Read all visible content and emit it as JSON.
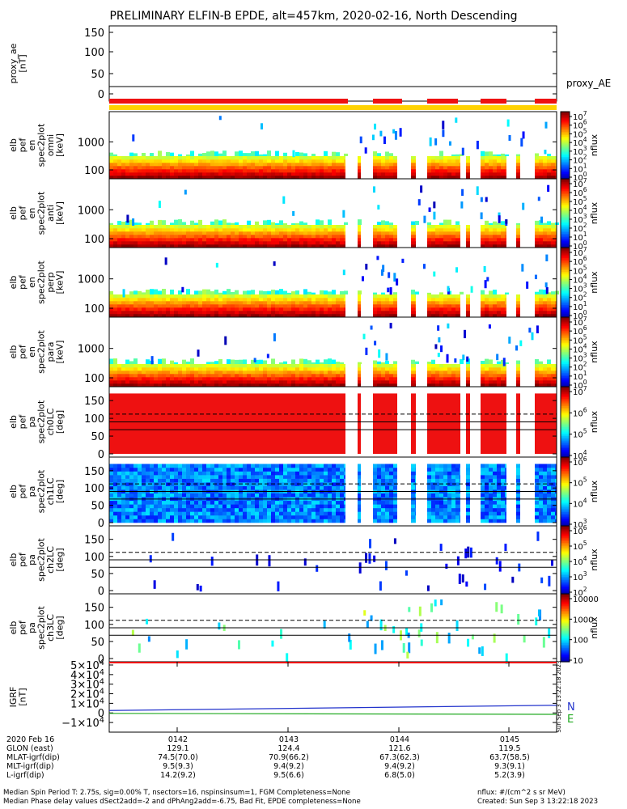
{
  "title": "PRELIMINARY ELFIN-B EPDE, alt=457km, 2020-02-16, North Descending",
  "chart_data": [
    {
      "type": "line",
      "panel": "proxy_ae",
      "ylabel": [
        "proxy_ae",
        "[nT]"
      ],
      "ytick_labels": [
        "150",
        "100",
        "50",
        "0"
      ],
      "ylim": [
        -15,
        160
      ],
      "legend": "proxy_AE",
      "series": [
        {
          "name": "proxy_AE",
          "values": [
            18,
            18,
            18,
            18
          ]
        }
      ]
    },
    {
      "type": "heatmap",
      "panel": "energy spectrogram 1",
      "ylabel": [
        "elb",
        "pef",
        "en",
        "spec2plot",
        "omni",
        "[keV]"
      ],
      "ytick_labels": [
        "1000",
        "100"
      ],
      "scale": "log",
      "colorbar_ticks": [
        "10^7",
        "10^6",
        "10^5",
        "10^4",
        "10^3",
        "10^2",
        "10^1",
        "10^0"
      ],
      "colorbar_label": "nflux"
    },
    {
      "type": "heatmap",
      "panel": "energy spectrogram 2",
      "ylabel": [
        "elb",
        "pef",
        "en",
        "spec2plot",
        "anti",
        "[keV]"
      ],
      "ytick_labels": [
        "1000",
        "100"
      ],
      "scale": "log",
      "colorbar_ticks": [
        "10^7",
        "10^6",
        "10^5",
        "10^4",
        "10^3",
        "10^2",
        "10^1",
        "10^0"
      ],
      "colorbar_label": "nflux"
    },
    {
      "type": "heatmap",
      "panel": "energy spectrogram 3",
      "ylabel": [
        "elb",
        "pef",
        "en",
        "spec2plot",
        "perp",
        "[keV]"
      ],
      "ytick_labels": [
        "1000",
        "100"
      ],
      "scale": "log",
      "colorbar_ticks": [
        "10^7",
        "10^6",
        "10^5",
        "10^4",
        "10^3",
        "10^2",
        "10^1",
        "10^0"
      ],
      "colorbar_label": "nflux"
    },
    {
      "type": "heatmap",
      "panel": "energy spectrogram 4",
      "ylabel": [
        "elb",
        "pef",
        "en",
        "spec2plot",
        "para",
        "[keV]"
      ],
      "ytick_labels": [
        "1000",
        "100"
      ],
      "scale": "log",
      "colorbar_ticks": [
        "10^7",
        "10^6",
        "10^5",
        "10^4",
        "10^3",
        "10^2",
        "10^1",
        "10^0"
      ],
      "colorbar_label": "nflux"
    },
    {
      "type": "heatmap",
      "panel": "pitch angle ch0",
      "ylabel": [
        "elb",
        "pef",
        "pa",
        "spec2plot",
        "ch0LC",
        "[deg]"
      ],
      "ytick_labels": [
        "150",
        "100",
        "50",
        "0"
      ],
      "ylim": [
        0,
        180
      ],
      "colorbar_ticks": [
        "10^7",
        "10^6",
        "10^5",
        "10^4"
      ],
      "colorbar_label": "nflux"
    },
    {
      "type": "heatmap",
      "panel": "pitch angle ch1",
      "ylabel": [
        "elb",
        "pef",
        "pa",
        "spec2plot",
        "ch1LC",
        "[deg]"
      ],
      "ytick_labels": [
        "150",
        "100",
        "50",
        "0"
      ],
      "ylim": [
        0,
        180
      ],
      "colorbar_ticks": [
        "10^6",
        "10^5",
        "10^4",
        "10^3"
      ],
      "colorbar_label": "nflux"
    },
    {
      "type": "heatmap",
      "panel": "pitch angle ch2",
      "ylabel": [
        "elb",
        "pef",
        "pa",
        "spec2plot",
        "ch2LC",
        "[deg]"
      ],
      "ytick_labels": [
        "150",
        "100",
        "50",
        "0"
      ],
      "ylim": [
        0,
        180
      ],
      "colorbar_ticks": [
        "10^6",
        "10^5",
        "10^4",
        "10^3",
        "10^2"
      ],
      "colorbar_label": "nflux"
    },
    {
      "type": "heatmap",
      "panel": "pitch angle ch3",
      "ylabel": [
        "elb",
        "pef",
        "pa",
        "spec2plot",
        "ch3LC",
        "[deg]"
      ],
      "ytick_labels": [
        "150",
        "100",
        "50",
        "0"
      ],
      "ylim": [
        0,
        180
      ],
      "colorbar_ticks": [
        "10000",
        "1000",
        "100",
        "10"
      ],
      "colorbar_label": "nflux"
    },
    {
      "type": "line",
      "panel": "IGRF",
      "ylabel": [
        "IGRF",
        "[nT]"
      ],
      "ytick_labels": [
        "5×10^4",
        "4×10^4",
        "3×10^4",
        "2×10^4",
        "1×10^4",
        "0",
        "−1×10^4"
      ],
      "ylim": [
        -15000,
        50000
      ],
      "series": [
        {
          "name": "N",
          "values": [
            2500,
            8000
          ]
        },
        {
          "name": "E",
          "values": [
            -500,
            -1500
          ]
        }
      ]
    }
  ],
  "time_axis": {
    "row_labels": [
      "2020 Feb 16",
      "GLON (east)",
      "MLAT-igrf(dip)",
      "MLT-igrf(dip)",
      "L-igrf(dip)"
    ],
    "columns": [
      {
        "time": "0142",
        "glon": "129.1",
        "mlat": "74.5(70.0)",
        "mlt": "9.5(9.3)",
        "l": "14.2(9.2)"
      },
      {
        "time": "0143",
        "glon": "124.4",
        "mlat": "70.9(66.2)",
        "mlt": "9.4(9.2)",
        "l": "9.5(6.6)"
      },
      {
        "time": "0144",
        "glon": "121.6",
        "mlat": "67.3(62.3)",
        "mlt": "9.4(9.2)",
        "l": "6.8(5.0)"
      },
      {
        "time": "0145",
        "glon": "119.5",
        "mlat": "63.7(58.5)",
        "mlt": "9.3(9.1)",
        "l": "5.2(3.9)"
      }
    ]
  },
  "footer": {
    "line1": "Median Spin Period T: 2.75s, sig=0.00% T, nsectors=16, nspinsinsum=1, FGM Completeness=None",
    "line2": "Median Phase delay values dSect2add=-2 and dPhAng2add=-6.75, Bad Fit, EPDE completeness=None",
    "units": "nflux: #/(cm^2 s sr MeV)",
    "created": "Created: Sun Sep  3 13:22:18 2023",
    "side_stamp": "Sun Sep  3 13:22:18 2023"
  },
  "colors": {
    "accent_red": "#ee1111",
    "accent_yellow": "#ffd200",
    "n_line": "#2233cc",
    "e_line": "#22aa22"
  }
}
